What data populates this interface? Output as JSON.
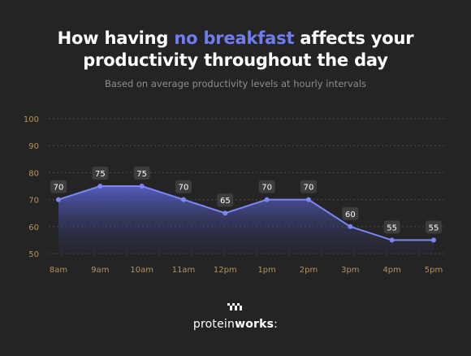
{
  "header": {
    "title_pre": "How having ",
    "title_highlight": "no breakfast",
    "title_post": " affects your",
    "title_line2": "productivity throughout the day",
    "subtitle": "Based on average productivity levels at hourly intervals"
  },
  "logo": {
    "text_light": "protein",
    "text_bold": "works",
    "text_suffix": ":"
  },
  "colors": {
    "background": "#242424",
    "accent": "#6f7cf2",
    "line": "#7d86f5",
    "axis_text": "#b39360",
    "grid": "#4a4a4a",
    "label_bg": "#3d3d3d"
  },
  "chart_data": {
    "type": "area",
    "x": [
      "8am",
      "9am",
      "10am",
      "11am",
      "12pm",
      "1pm",
      "2pm",
      "3pm",
      "4pm",
      "5pm"
    ],
    "series": [
      {
        "values": [
          70,
          75,
          75,
          70,
          65,
          70,
          70,
          60,
          55,
          55
        ]
      }
    ],
    "ylim": [
      50,
      100
    ],
    "yticks": [
      50,
      60,
      70,
      80,
      90,
      100
    ],
    "grid": true,
    "data_labels": true
  }
}
